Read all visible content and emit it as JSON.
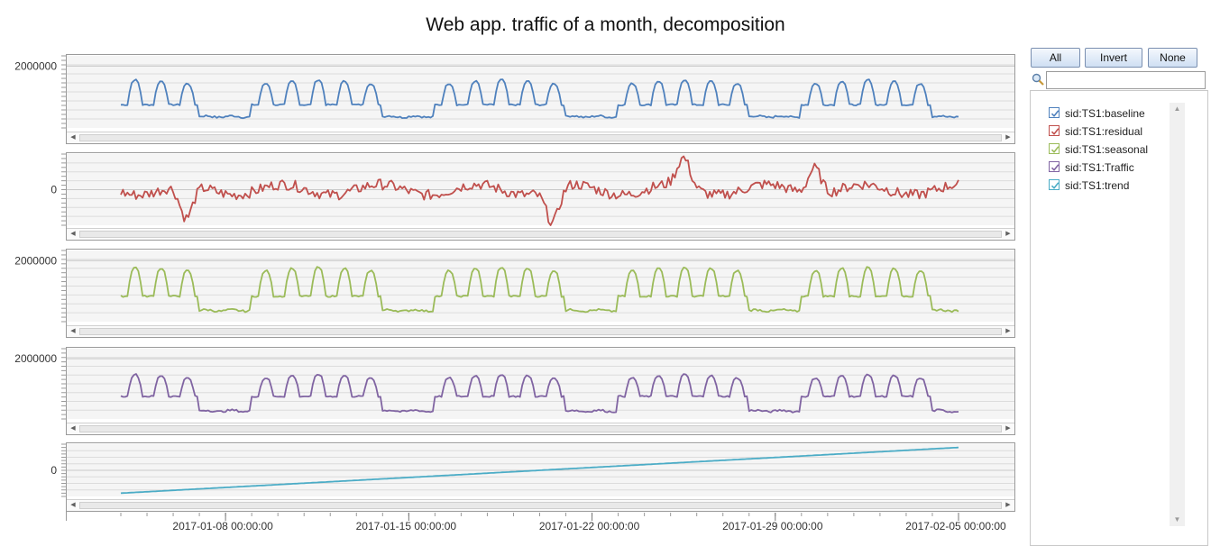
{
  "title": "Web app. traffic of a month, decomposition",
  "controls": {
    "all_label": "All",
    "invert_label": "Invert",
    "none_label": "None",
    "search_value": ""
  },
  "legend": [
    {
      "label": "sid:TS1:baseline",
      "color": "#4f81bd",
      "checked": true
    },
    {
      "label": "sid:TS1:residual",
      "color": "#c0504d",
      "checked": true
    },
    {
      "label": "sid:TS1:seasonal",
      "color": "#9bbb59",
      "checked": true
    },
    {
      "label": "sid:TS1:Traffic",
      "color": "#8064a2",
      "checked": true
    },
    {
      "label": "sid:TS1:trend",
      "color": "#4bacc6",
      "checked": true
    }
  ],
  "chart_data": {
    "type": "line",
    "title": "Web app. traffic of a month, decomposition",
    "x_start": "2017-01-04",
    "x_end": "2017-02-05",
    "x_ticks": [
      "2017-01-08 00:00:00",
      "2017-01-15 00:00:00",
      "2017-01-22 00:00:00",
      "2017-01-29 00:00:00",
      "2017-02-05 00:00:00"
    ],
    "grid": true,
    "legend_position": "right",
    "panels": [
      {
        "series": "sid:TS1:baseline",
        "color": "#4f81bd",
        "ylim": [
          800000,
          2200000
        ],
        "ytick_label": "2000000",
        "ytick_value": 2000000,
        "weekday_levels": {
          "Mon": 1700000,
          "Tue": 1750000,
          "Wed": 1780000,
          "Thu": 1750000,
          "Fri": 1700000
        },
        "weekend_level": 1020000,
        "daily_low": 1250000
      },
      {
        "series": "sid:TS1:residual",
        "color": "#c0504d",
        "ylim": [
          -400000,
          400000
        ],
        "ytick_label": "0",
        "ytick_value": 0,
        "typical_range": [
          -150000,
          150000
        ],
        "spikes": [
          {
            "date": "2017-01-06",
            "value": -380000
          },
          {
            "date": "2017-01-20",
            "value": -380000
          },
          {
            "date": "2017-01-25",
            "value": 320000
          },
          {
            "date": "2017-01-30",
            "value": 300000
          }
        ]
      },
      {
        "series": "sid:TS1:seasonal",
        "color": "#9bbb59",
        "ylim": [
          800000,
          2200000
        ],
        "ytick_label": "2000000",
        "ytick_value": 2000000,
        "weekday_levels": {
          "Mon": 1850000,
          "Tue": 1900000,
          "Wed": 1920000,
          "Thu": 1900000,
          "Fri": 1850000
        },
        "weekend_level": 1020000,
        "daily_low": 1300000
      },
      {
        "series": "sid:TS1:Traffic",
        "color": "#8064a2",
        "ylim": [
          800000,
          2200000
        ],
        "ytick_label": "2000000",
        "ytick_value": 2000000,
        "weekday_levels": {
          "Mon": 1650000,
          "Tue": 1700000,
          "Wed": 1730000,
          "Thu": 1700000,
          "Fri": 1650000
        },
        "weekend_level": 960000,
        "daily_low": 1250000
      },
      {
        "series": "sid:TS1:trend",
        "color": "#4bacc6",
        "ylim": [
          -400000,
          400000
        ],
        "ytick_label": "0",
        "ytick_value": 0,
        "start_value": -350000,
        "end_value": 350000
      }
    ]
  }
}
